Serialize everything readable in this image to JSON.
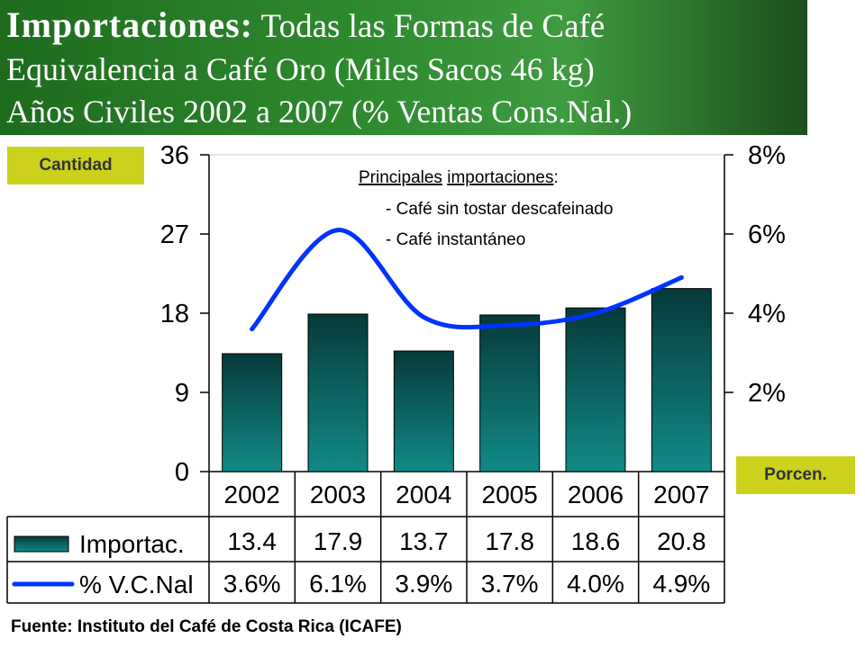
{
  "header": {
    "title_bold": "Importaciones:",
    "title_rest": " Todas las Formas de Café",
    "line2": "Equivalencia a Café Oro (Miles Sacos 46 kg)",
    "line3": "Años Civiles 2002 a 2007 (% Ventas Cons.Nal.)"
  },
  "labels": {
    "left_badge": "Cantidad",
    "right_badge": "Porcen."
  },
  "annotation": {
    "heading_part1": "Principales",
    "heading_part2": "importaciones",
    "heading_colon": ":",
    "items": [
      "- Café sin tostar descafeinado",
      "- Café instantáneo"
    ]
  },
  "source": "Fuente: Instituto del Café de Costa Rica (ICAFE)",
  "colors": {
    "bar_top": "#073a3a",
    "bar_bottom": "#108a87",
    "line": "#0033ff",
    "badge": "#ccd21c",
    "header": "#2f8a2f"
  },
  "chart_data": {
    "type": "bar",
    "categories": [
      "2002",
      "2003",
      "2004",
      "2005",
      "2006",
      "2007"
    ],
    "series": [
      {
        "name": "Importac.",
        "type": "bar",
        "axis": "left",
        "values": [
          13.4,
          17.9,
          13.7,
          17.8,
          18.6,
          20.8
        ]
      },
      {
        "name": "% V.C.Nal",
        "type": "line",
        "axis": "right",
        "values": [
          3.6,
          6.1,
          3.9,
          3.7,
          4.0,
          4.9
        ]
      }
    ],
    "table_values": [
      [
        "13.4",
        "17.9",
        "13.7",
        "17.8",
        "18.6",
        "20.8"
      ],
      [
        "3.6%",
        "6.1%",
        "3.9%",
        "3.7%",
        "4.0%",
        "4.9%"
      ]
    ],
    "y_left": {
      "ticks": [
        "0",
        "9",
        "18",
        "27",
        "36"
      ],
      "range": [
        0,
        36
      ]
    },
    "y_right": {
      "ticks": [
        "2%",
        "4%",
        "6%",
        "8%"
      ],
      "range": [
        0,
        8
      ]
    },
    "grid": false,
    "legend": "data-table"
  }
}
